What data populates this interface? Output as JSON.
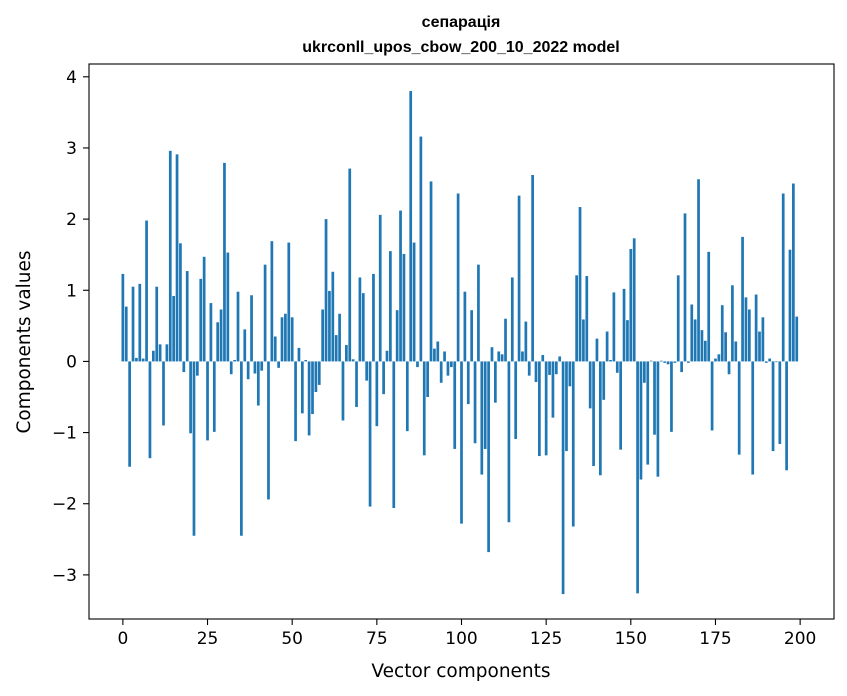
{
  "chart_data": {
    "type": "bar",
    "title": "сепарація",
    "subtitle": "ukrconll_upos_cbow_200_10_2022 model",
    "xlabel": "Vector components",
    "ylabel": "Components values",
    "xlim": [
      -10,
      210
    ],
    "ylim": [
      -3.62,
      4.18
    ],
    "xticks": [
      0,
      25,
      50,
      75,
      100,
      125,
      150,
      175,
      200
    ],
    "yticks": [
      -3,
      -2,
      -1,
      0,
      1,
      2,
      3,
      4
    ],
    "ytick_labels": [
      "−3",
      "−2",
      "−1",
      "0",
      "1",
      "2",
      "3",
      "4"
    ],
    "bar_color": "#1f77b4",
    "grid": false,
    "values": [
      1.23,
      0.77,
      -1.48,
      1.05,
      0.05,
      1.09,
      0.04,
      1.98,
      -1.36,
      0.15,
      1.05,
      0.24,
      -0.9,
      0.24,
      2.96,
      0.92,
      2.91,
      1.66,
      -0.15,
      1.27,
      -1.01,
      -2.45,
      -0.2,
      1.16,
      1.47,
      -1.11,
      0.82,
      -0.99,
      0.55,
      0.73,
      2.79,
      1.53,
      -0.18,
      0.02,
      0.98,
      -2.45,
      0.45,
      -0.25,
      0.93,
      -0.17,
      -0.62,
      -0.13,
      1.36,
      -1.94,
      1.69,
      0.35,
      -0.09,
      0.62,
      0.67,
      1.67,
      0.62,
      -1.12,
      0.19,
      -0.73,
      0.02,
      -1.04,
      -0.74,
      -0.43,
      -0.33,
      0.73,
      2.0,
      0.99,
      1.26,
      0.37,
      0.67,
      -0.83,
      0.23,
      2.71,
      0.03,
      -0.64,
      1.18,
      0.96,
      -0.27,
      -2.04,
      1.23,
      -0.91,
      2.06,
      -0.46,
      0.15,
      1.55,
      -2.06,
      0.72,
      2.12,
      1.51,
      -0.98,
      3.8,
      1.67,
      -0.08,
      3.16,
      -1.32,
      -0.5,
      2.53,
      0.18,
      0.28,
      -0.3,
      0.14,
      -0.2,
      -0.08,
      -1.23,
      2.36,
      -2.28,
      0.98,
      -0.6,
      0.72,
      -1.15,
      1.36,
      -1.59,
      -1.23,
      -2.68,
      0.2,
      -0.58,
      0.14,
      0.1,
      0.6,
      -2.26,
      1.18,
      -1.09,
      2.33,
      0.14,
      0.56,
      -0.2,
      2.62,
      -0.29,
      -1.33,
      0.09,
      -1.32,
      -0.19,
      -0.79,
      -0.18,
      0.07,
      -3.27,
      -1.26,
      -0.35,
      -2.32,
      1.21,
      2.17,
      0.59,
      1.2,
      -0.66,
      -1.47,
      0.32,
      -1.6,
      -0.54,
      0.42,
      0.02,
      0.97,
      -0.16,
      -1.24,
      1.02,
      0.58,
      1.58,
      1.73,
      -3.26,
      -1.66,
      -0.3,
      -1.45,
      0.01,
      -1.03,
      -1.62,
      0.01,
      -0.02,
      -0.04,
      -0.99,
      -0.02,
      1.21,
      -0.15,
      2.08,
      -0.02,
      0.8,
      0.59,
      2.56,
      0.44,
      0.29,
      1.54,
      -0.97,
      0.04,
      0.1,
      0.79,
      0.41,
      -0.18,
      1.07,
      0.28,
      -1.31,
      1.75,
      0.9,
      0.73,
      -1.59,
      0.94,
      0.42,
      0.62,
      -0.02,
      0.04,
      -1.26,
      -0.01,
      -1.16,
      2.36,
      -1.53,
      1.57,
      2.5,
      0.63
    ]
  }
}
